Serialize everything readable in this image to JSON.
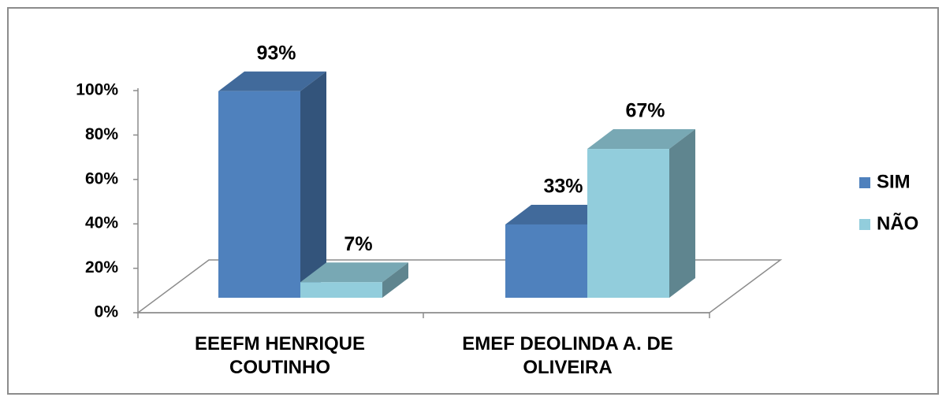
{
  "chart_data": {
    "type": "bar3d",
    "categories": [
      "EEEFM HENRIQUE COUTINHO",
      "EMEF DEOLINDA A. DE OLIVEIRA"
    ],
    "series": [
      {
        "name": "SIM",
        "color": "#4f81bd",
        "values": [
          93,
          33
        ],
        "value_labels": [
          "93%",
          "33%"
        ]
      },
      {
        "name": "NÃO",
        "color": "#92cddc",
        "values": [
          7,
          67
        ],
        "value_labels": [
          "7%",
          "67%"
        ]
      }
    ],
    "ylim": [
      0,
      100
    ],
    "yticks": [
      {
        "value": 0,
        "label": "0%"
      },
      {
        "value": 20,
        "label": "20%"
      },
      {
        "value": 40,
        "label": "40%"
      },
      {
        "value": 60,
        "label": "60%"
      },
      {
        "value": 80,
        "label": "80%"
      },
      {
        "value": 100,
        "label": "100%"
      }
    ],
    "legend": "right"
  }
}
